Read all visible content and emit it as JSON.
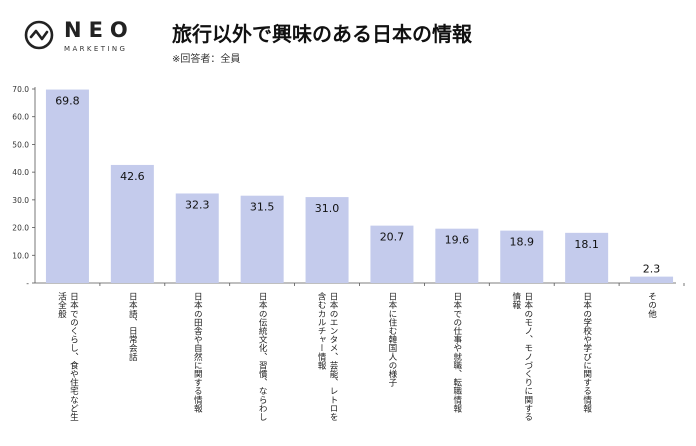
{
  "brand": {
    "name": "NEO",
    "tagline": "MARKETING"
  },
  "header": {
    "title": "旅行以外で興味のある日本の情報",
    "note": "※回答者：全員"
  },
  "chart_data": {
    "type": "bar",
    "title": "旅行以外で興味のある日本の情報",
    "subtitle": "※回答者：全員",
    "categories": [
      "日本でのくらし、食や住宅など生活全般",
      "日本語、日常会話",
      "日本の田舎や自然に関する情報",
      "日本の伝統文化、習慣、ならわし",
      "日本のエンタメ、芸能、レトロを含むカルチャー情報",
      "日本に住む韓国人の様子",
      "日本での仕事や就職、転職情報",
      "日本のモノ、モノづくりに関する情報",
      "日本の学校や学びに関する情報",
      "その他"
    ],
    "label_lines": [
      [
        "日本でのくらし、食や住宅など生",
        "活全般"
      ],
      [
        "日本語、日常会話"
      ],
      [
        "日本の田舎や自然に関する情報"
      ],
      [
        "日本の伝統文化、習慣、ならわし"
      ],
      [
        "日本のエンタメ、芸能、レトロを",
        "含むカルチャー情報"
      ],
      [
        "日本に住む韓国人の様子"
      ],
      [
        "日本での仕事や就職、転職情報"
      ],
      [
        "日本のモノ、モノづくりに関する",
        "情報"
      ],
      [
        "日本の学校や学びに関する情報"
      ],
      [
        "その他"
      ]
    ],
    "values": [
      69.8,
      42.6,
      32.3,
      31.5,
      31.0,
      20.7,
      19.6,
      18.9,
      18.1,
      2.3
    ],
    "value_labels": [
      "69.8",
      "42.6",
      "32.3",
      "31.5",
      "31.0",
      "20.7",
      "19.6",
      "18.9",
      "18.1",
      "2.3"
    ],
    "ylim": [
      0,
      70
    ],
    "yticks": [
      "-",
      "10.0",
      "20.0",
      "30.0",
      "40.0",
      "50.0",
      "60.0",
      "70.0"
    ],
    "ytick_values": [
      0,
      10,
      20,
      30,
      40,
      50,
      60,
      70
    ],
    "grid": false,
    "legend": "none",
    "bar_color": "#c4cbec"
  }
}
